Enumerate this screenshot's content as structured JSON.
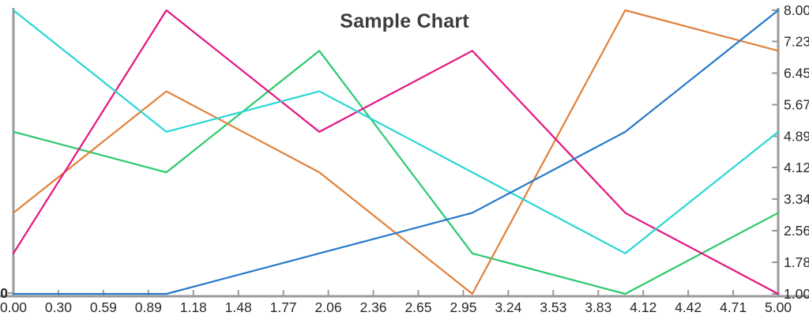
{
  "chart_data": {
    "type": "line",
    "title": "Sample Chart",
    "x": [
      0,
      1,
      2,
      3,
      4,
      5
    ],
    "series": [
      {
        "name": "green",
        "color": "#2bc96e",
        "values": [
          5,
          4,
          7,
          2,
          1,
          3
        ]
      },
      {
        "name": "orange",
        "color": "#e0813a",
        "values": [
          3,
          6,
          4,
          1,
          8,
          7
        ]
      },
      {
        "name": "magenta",
        "color": "#e31581",
        "values": [
          2,
          8,
          5,
          7,
          3,
          1
        ]
      },
      {
        "name": "cyan",
        "color": "#29d6d6",
        "values": [
          8,
          5,
          6,
          4,
          2,
          5
        ]
      },
      {
        "name": "blue",
        "color": "#2779c9",
        "values": [
          1,
          1,
          2,
          3,
          5,
          8
        ]
      }
    ],
    "x_tick_labels": [
      "0.00",
      "0.30",
      "0.59",
      "0.89",
      "1.18",
      "1.48",
      "1.77",
      "2.06",
      "2.36",
      "2.65",
      "2.95",
      "3.24",
      "3.53",
      "3.83",
      "4.12",
      "4.42",
      "4.71",
      "5.00"
    ],
    "y_tick_labels_right": [
      "8.00",
      "7.23",
      "6.45",
      "5.67",
      "4.89",
      "4.12",
      "3.34",
      "2.56",
      "1.78",
      "1.00"
    ],
    "y_tick_label_left_bottom": "0",
    "xlim": [
      0,
      5
    ],
    "ylim": [
      1,
      8
    ],
    "grid": false,
    "legend": "none",
    "axis_color": "#9a9a9a",
    "tick_label_color": "#282828",
    "title_color": "#3d3d3d"
  }
}
